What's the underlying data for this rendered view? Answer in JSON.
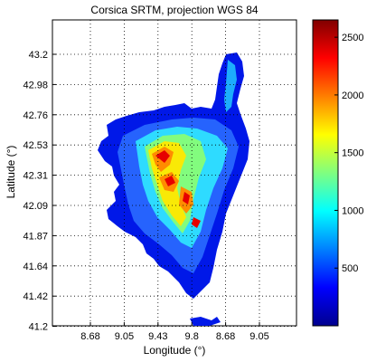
{
  "chart_data": {
    "type": "heatmap",
    "title": "Corsica SRTM, projection WGS 84",
    "xlabel": "Longitude (°)",
    "ylabel": "Latitude (°)",
    "x_ticks": [
      "8.68",
      "9.05",
      "9.43",
      "9.8",
      "8.68",
      "9.05"
    ],
    "y_ticks": [
      "43.2",
      "42.98",
      "42.76",
      "42.53",
      "42.31",
      "42.09",
      "41.87",
      "41.64",
      "41.42",
      "41.2"
    ],
    "colorbar": {
      "colormap": "jet",
      "range": [
        0,
        2650
      ],
      "ticks": [
        500,
        1000,
        1500,
        2000,
        2500
      ]
    },
    "grid": true,
    "background": "#ffffff"
  }
}
